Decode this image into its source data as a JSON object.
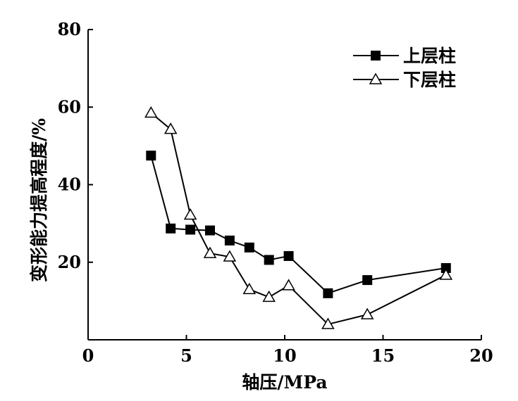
{
  "chart_data": {
    "type": "line",
    "title": "",
    "xlabel": "轴压/MPa",
    "ylabel": "变形能力提高程度/%",
    "xlim": [
      0,
      20
    ],
    "ylim": [
      0,
      80
    ],
    "x_ticks": [
      0,
      5,
      10,
      15,
      20
    ],
    "y_ticks": [
      20,
      40,
      60,
      80
    ],
    "grid": false,
    "legend_position": "top-right",
    "series": [
      {
        "name": "上层柱",
        "marker": "filled-square",
        "color": "#000000",
        "x": [
          3.2,
          4.2,
          5.2,
          6.2,
          7.2,
          8.2,
          9.2,
          10.2,
          12.2,
          14.2,
          18.2
        ],
        "y": [
          47.5,
          28.7,
          28.4,
          28.2,
          25.6,
          23.8,
          20.6,
          21.6,
          12.0,
          15.4,
          18.5
        ]
      },
      {
        "name": "下层柱",
        "marker": "open-triangle",
        "color": "#000000",
        "x": [
          3.2,
          4.2,
          5.2,
          6.2,
          7.2,
          8.2,
          9.2,
          10.2,
          12.2,
          14.2,
          18.2
        ],
        "y": [
          58.5,
          54.3,
          32.2,
          22.3,
          21.4,
          13.0,
          11.0,
          14.0,
          4.0,
          6.5,
          16.7
        ]
      }
    ]
  }
}
